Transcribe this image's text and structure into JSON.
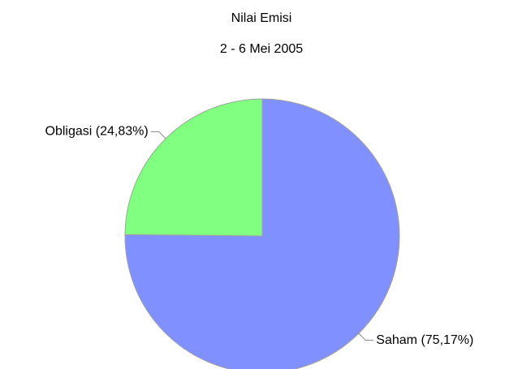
{
  "chart_data": {
    "type": "pie",
    "title": "Nilai Emisi",
    "subtitle": "2 - 6 Mei 2005",
    "categories": [
      "Saham (75,17%)",
      "Obligasi (24,83%)"
    ],
    "values": [
      75.17,
      24.83
    ],
    "colors": [
      "#8091ff",
      "#80ff80"
    ]
  }
}
